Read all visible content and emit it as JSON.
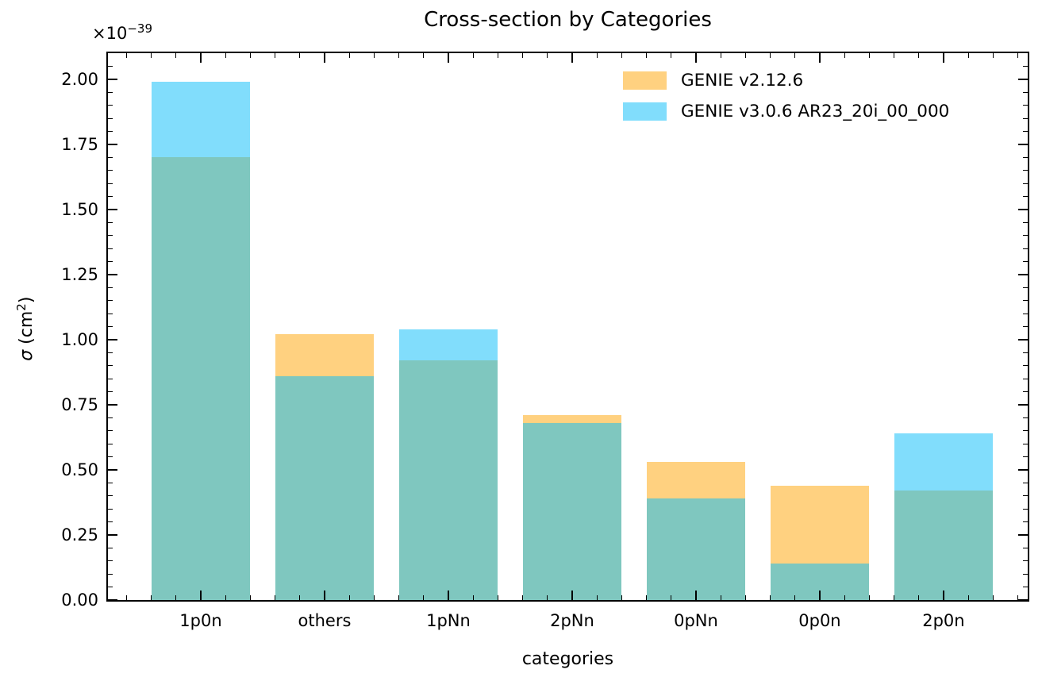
{
  "chart_data": {
    "type": "bar",
    "title": "Cross-section by Categories",
    "xlabel": "categories",
    "ylabel": {
      "sigma": "σ",
      "rest": " (cm",
      "exp": "2",
      "close": ")"
    },
    "y_offset": {
      "base": "×10",
      "exp": "−39"
    },
    "categories": [
      "1p0n",
      "others",
      "1pNn",
      "2pNn",
      "0pNn",
      "0p0n",
      "2p0n"
    ],
    "series": [
      {
        "name": "GENIE v2.12.6",
        "color": "#FFD180",
        "values": [
          1.7,
          1.02,
          0.92,
          0.71,
          0.53,
          0.44,
          0.42
        ]
      },
      {
        "name": "GENIE v3.0.6 AR23_20i_00_000",
        "color": "#81DDFC",
        "values": [
          1.99,
          0.86,
          1.04,
          0.68,
          0.39,
          0.14,
          0.64
        ]
      }
    ],
    "overlap_color": "#7FC7BF",
    "bar_style": "overlapping-translucent",
    "value_scale": "1e-39 cm^2",
    "ylim": [
      0,
      2.1
    ],
    "xlim": [
      -0.75,
      6.68
    ],
    "bar_width": 0.8,
    "y_major_ticks": [
      0.0,
      0.25,
      0.5,
      0.75,
      1.0,
      1.25,
      1.5,
      1.75,
      2.0
    ],
    "y_tick_labels": [
      "0.00",
      "0.25",
      "0.50",
      "0.75",
      "1.00",
      "1.25",
      "1.50",
      "1.75",
      "2.00"
    ],
    "y_minor_step": 0.05,
    "x_minor_step": 0.2,
    "tick_direction": "in",
    "grid": false,
    "legend_position": "upper right"
  }
}
